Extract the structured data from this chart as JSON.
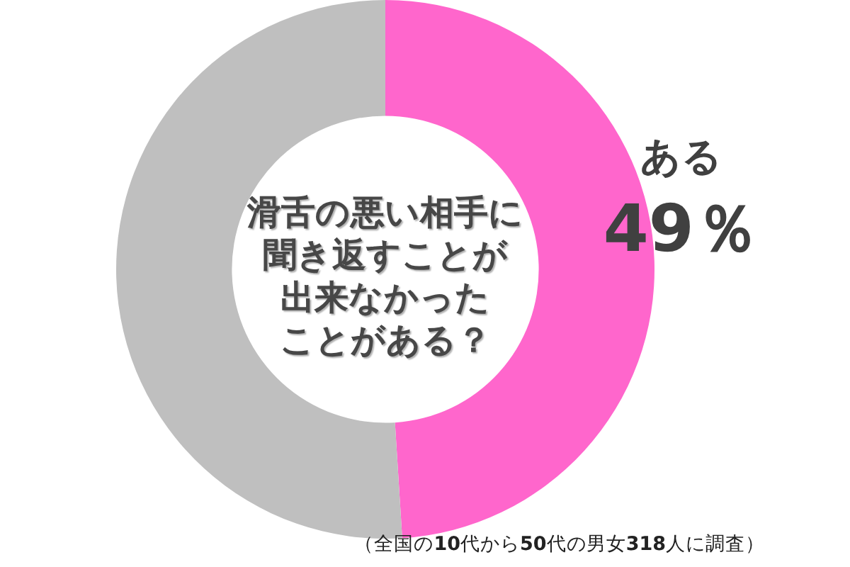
{
  "chart_data": {
    "type": "donut",
    "title": "滑舌の悪い相手に聞き返すことが出来なかったことがある？",
    "categories": [
      "ある",
      null
    ],
    "values": [
      49,
      51
    ],
    "colors": [
      "#ff66cc",
      "#bfbfbf"
    ],
    "value_labels": [
      "49％",
      null
    ],
    "annotations": [
      "（全国の10代から50代の男女318人に調査）"
    ]
  }
}
